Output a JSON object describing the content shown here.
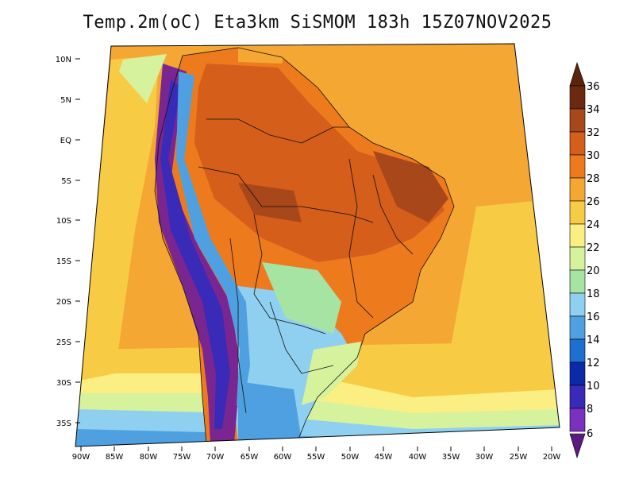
{
  "title": "Temp.2m(oC) Eta3km SiSMOM 183h 15Z07NOV2025",
  "map": {
    "lat_labels": [
      "10N",
      "5N",
      "EQ",
      "5S",
      "10S",
      "15S",
      "20S",
      "25S",
      "30S",
      "35S"
    ],
    "lon_labels": [
      "90W",
      "85W",
      "80W",
      "75W",
      "70W",
      "65W",
      "60W",
      "55W",
      "50W",
      "45W",
      "40W",
      "35W",
      "30W",
      "25W",
      "20W"
    ]
  },
  "colorbar": {
    "labels": [
      "36",
      "34",
      "32",
      "30",
      "28",
      "26",
      "24",
      "22",
      "20",
      "18",
      "16",
      "14",
      "12",
      "10",
      "8",
      "6"
    ],
    "colors": [
      "#6b2a10",
      "#a8471a",
      "#d45e1a",
      "#ee7a1e",
      "#f5a733",
      "#f8cb45",
      "#fbef84",
      "#d6f29c",
      "#a6e4a4",
      "#8fd0f0",
      "#4fa0e0",
      "#1d6fd0",
      "#0b2aa8",
      "#3a2ab8",
      "#7a30c0",
      "#7a2690"
    ],
    "min_color": "#5a1c80",
    "max_color": "#5c2408"
  },
  "legend_colors": {
    "ocean_main": "#f5a733",
    "ocean_cool": "#fbef84",
    "land_hot": "#ee7a1e",
    "land_hotter": "#d45e1a",
    "andes": "#7a2690",
    "south_cool": "#8fd0f0",
    "south_cold": "#1d6fd0"
  }
}
